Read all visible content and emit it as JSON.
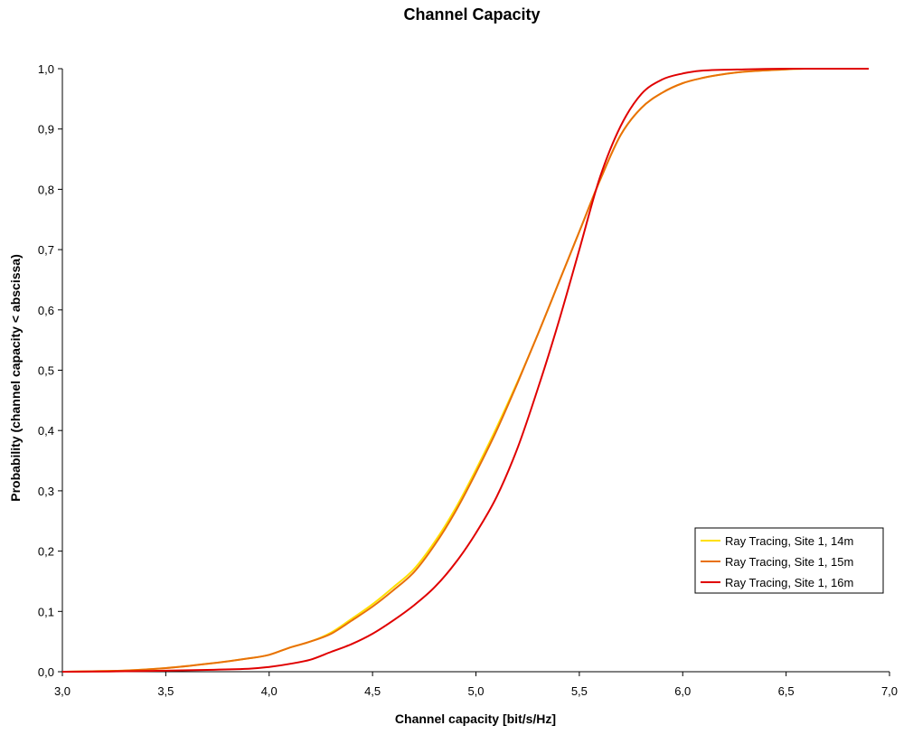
{
  "chart_data": {
    "type": "line",
    "title": "Channel Capacity",
    "xlabel": "Channel capacity [bit/s/Hz]",
    "ylabel": "Probability (channel capacity < abscissa)",
    "xlim": [
      3.0,
      7.0
    ],
    "ylim": [
      0.0,
      1.0
    ],
    "x_ticks": [
      "3,0",
      "3,5",
      "4,0",
      "4,5",
      "5,0",
      "5,5",
      "6,0",
      "6,5",
      "7,0"
    ],
    "y_ticks": [
      "0,0",
      "0,1",
      "0,2",
      "0,3",
      "0,4",
      "0,5",
      "0,6",
      "0,7",
      "0,8",
      "0,9",
      "1,0"
    ],
    "grid": false,
    "legend_position": "right",
    "series": [
      {
        "name": "Ray Tracing, Site 1, 14m",
        "color": "#FFE000",
        "points": [
          [
            3.0,
            0.0
          ],
          [
            3.3,
            0.002
          ],
          [
            3.5,
            0.006
          ],
          [
            3.7,
            0.013
          ],
          [
            3.9,
            0.022
          ],
          [
            4.0,
            0.028
          ],
          [
            4.1,
            0.04
          ],
          [
            4.2,
            0.05
          ],
          [
            4.3,
            0.065
          ],
          [
            4.4,
            0.088
          ],
          [
            4.5,
            0.112
          ],
          [
            4.6,
            0.14
          ],
          [
            4.7,
            0.17
          ],
          [
            4.8,
            0.215
          ],
          [
            4.9,
            0.27
          ],
          [
            5.0,
            0.335
          ],
          [
            5.1,
            0.405
          ],
          [
            5.2,
            0.48
          ],
          [
            5.3,
            0.56
          ],
          [
            5.4,
            0.645
          ],
          [
            5.5,
            0.73
          ],
          [
            5.6,
            0.815
          ],
          [
            5.7,
            0.89
          ],
          [
            5.8,
            0.935
          ],
          [
            5.9,
            0.96
          ],
          [
            6.0,
            0.976
          ],
          [
            6.1,
            0.985
          ],
          [
            6.2,
            0.991
          ],
          [
            6.3,
            0.995
          ],
          [
            6.5,
            0.999
          ],
          [
            6.6,
            1.0
          ],
          [
            6.85,
            1.0
          ]
        ]
      },
      {
        "name": "Ray Tracing, Site 1, 15m",
        "color": "#E8700A",
        "points": [
          [
            3.0,
            0.0
          ],
          [
            3.3,
            0.002
          ],
          [
            3.5,
            0.006
          ],
          [
            3.7,
            0.013
          ],
          [
            3.9,
            0.022
          ],
          [
            4.0,
            0.028
          ],
          [
            4.1,
            0.04
          ],
          [
            4.2,
            0.05
          ],
          [
            4.3,
            0.063
          ],
          [
            4.4,
            0.085
          ],
          [
            4.5,
            0.108
          ],
          [
            4.6,
            0.135
          ],
          [
            4.7,
            0.165
          ],
          [
            4.8,
            0.21
          ],
          [
            4.9,
            0.265
          ],
          [
            5.0,
            0.33
          ],
          [
            5.1,
            0.4
          ],
          [
            5.2,
            0.478
          ],
          [
            5.3,
            0.56
          ],
          [
            5.4,
            0.645
          ],
          [
            5.5,
            0.73
          ],
          [
            5.6,
            0.815
          ],
          [
            5.7,
            0.89
          ],
          [
            5.8,
            0.935
          ],
          [
            5.9,
            0.96
          ],
          [
            6.0,
            0.976
          ],
          [
            6.1,
            0.985
          ],
          [
            6.2,
            0.991
          ],
          [
            6.3,
            0.995
          ],
          [
            6.5,
            0.999
          ],
          [
            6.6,
            1.0
          ],
          [
            6.85,
            1.0
          ]
        ]
      },
      {
        "name": "Ray Tracing, Site 1, 16m",
        "color": "#E00000",
        "points": [
          [
            3.0,
            0.0
          ],
          [
            3.4,
            0.001
          ],
          [
            3.7,
            0.003
          ],
          [
            3.9,
            0.005
          ],
          [
            4.0,
            0.008
          ],
          [
            4.1,
            0.013
          ],
          [
            4.2,
            0.02
          ],
          [
            4.3,
            0.033
          ],
          [
            4.4,
            0.046
          ],
          [
            4.5,
            0.063
          ],
          [
            4.6,
            0.085
          ],
          [
            4.7,
            0.11
          ],
          [
            4.8,
            0.14
          ],
          [
            4.9,
            0.18
          ],
          [
            5.0,
            0.23
          ],
          [
            5.1,
            0.29
          ],
          [
            5.2,
            0.37
          ],
          [
            5.3,
            0.47
          ],
          [
            5.4,
            0.58
          ],
          [
            5.5,
            0.7
          ],
          [
            5.6,
            0.82
          ],
          [
            5.7,
            0.905
          ],
          [
            5.8,
            0.958
          ],
          [
            5.9,
            0.982
          ],
          [
            6.0,
            0.992
          ],
          [
            6.1,
            0.997
          ],
          [
            6.3,
            0.999
          ],
          [
            6.5,
            1.0
          ],
          [
            6.9,
            1.0
          ]
        ]
      }
    ]
  }
}
